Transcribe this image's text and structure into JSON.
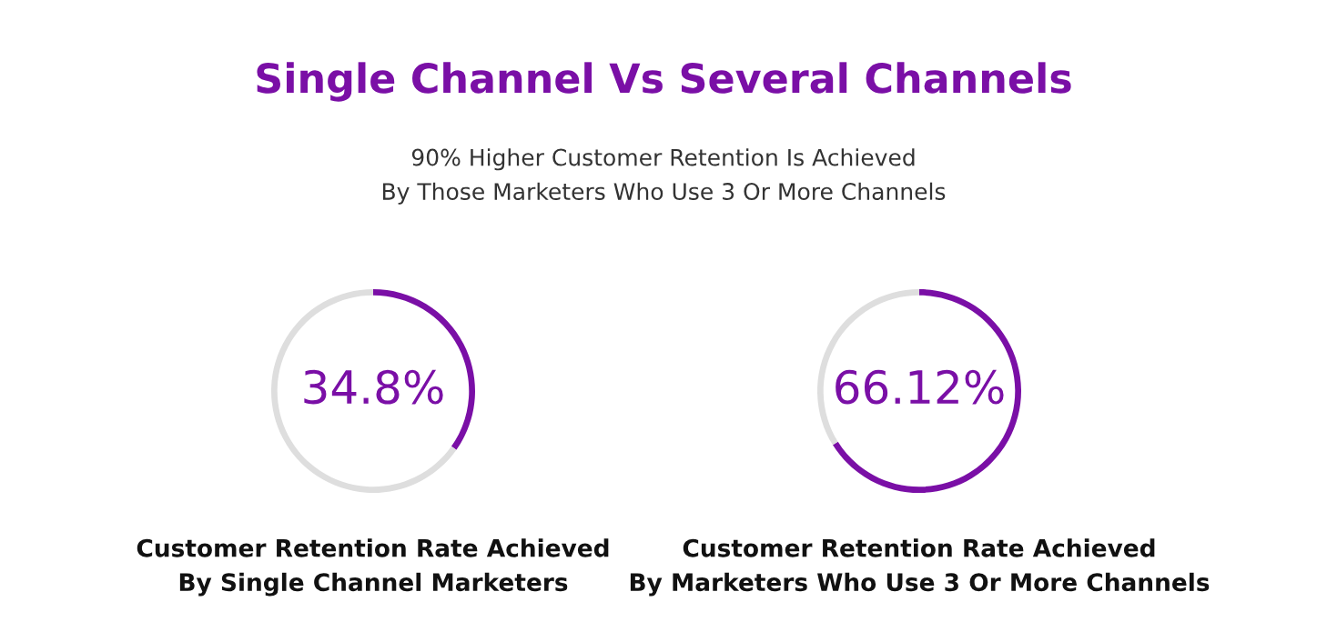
{
  "chart_data": [
    {
      "type": "donut",
      "title": "Single Channel Vs Several Channels",
      "subtitle": "90% Higher Customer Retention Is Achieved\nBy Those Marketers Who Use 3 Or More Channels",
      "categories": [
        null,
        null
      ],
      "values": [
        34.8,
        65.2
      ],
      "colors": [
        "#7a0fa6",
        "#dedede"
      ],
      "value_labels": [
        "34.8%",
        null
      ],
      "xlabel": "Customer Retention Rate Achieved\nBy Single Channel Marketers"
    },
    {
      "type": "donut",
      "categories": [
        null,
        null
      ],
      "values": [
        66.12,
        33.88
      ],
      "colors": [
        "#7a0fa6",
        "#dedede"
      ],
      "value_labels": [
        "66.12%",
        null
      ],
      "xlabel": "Customer Retention Rate Achieved\nBy Marketers Who Use 3 Or More Channels"
    }
  ]
}
